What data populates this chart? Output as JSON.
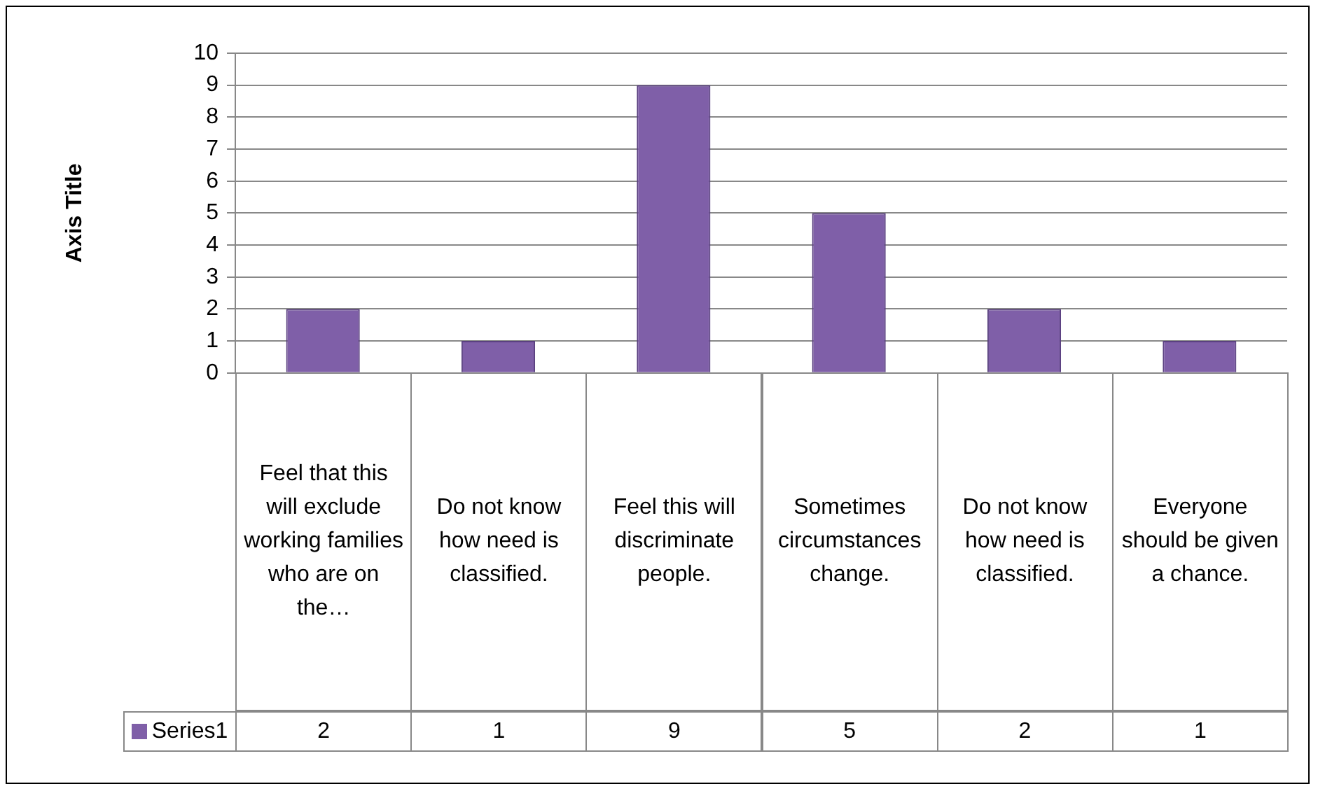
{
  "chart_data": {
    "type": "bar",
    "ylabel": "Axis Title",
    "categories": [
      "Feel that this will exclude working families who are on the…",
      "Do not know how need is classified.",
      "Feel this will discriminate people.",
      "Sometimes circumstances change.",
      "Do not know how need is classified.",
      "Everyone should be given a chance."
    ],
    "series": [
      {
        "name": "Series1",
        "color": "#7f5fa8",
        "values": [
          2,
          1,
          9,
          5,
          2,
          1
        ]
      }
    ],
    "ylim": [
      0,
      10
    ],
    "yticks": [
      0,
      1,
      2,
      3,
      4,
      5,
      6,
      7,
      8,
      9,
      10
    ],
    "grid": "y",
    "legend": "bottom",
    "data_labels": true
  }
}
